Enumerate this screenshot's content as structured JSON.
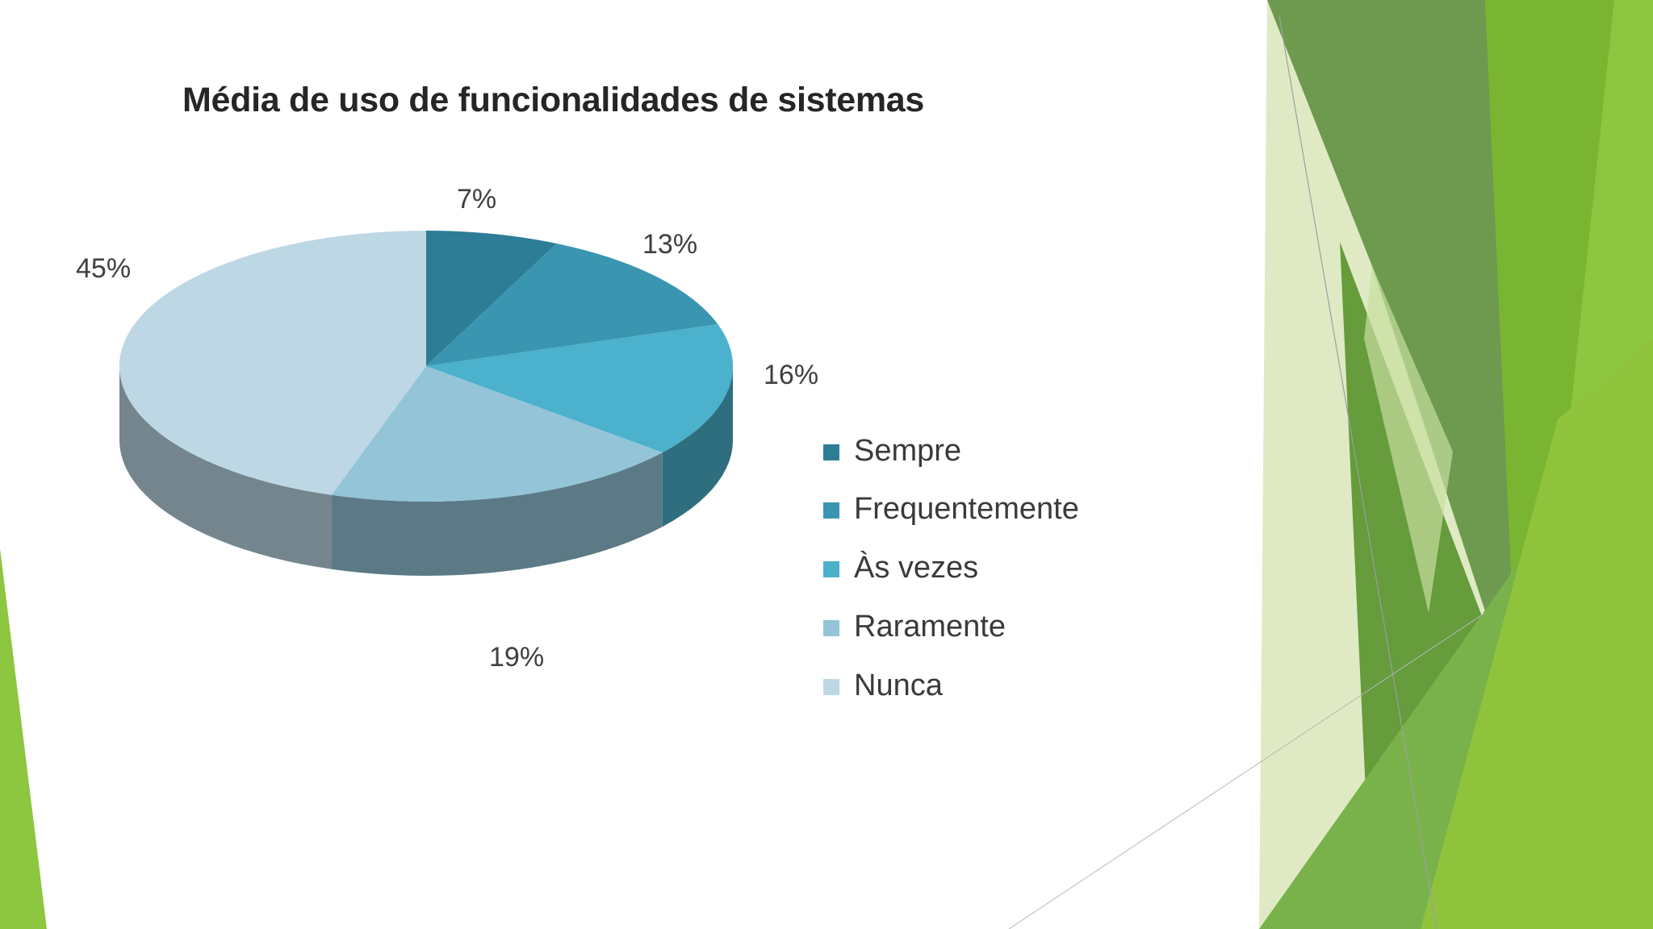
{
  "chart_data": {
    "type": "pie",
    "title": "Média de uso de funcionalidades de sistemas",
    "categories": [
      "Sempre",
      "Frequentemente",
      "Às vezes",
      "Raramente",
      "Nunca"
    ],
    "values": [
      7,
      13,
      16,
      19,
      45
    ],
    "value_labels": [
      "7%",
      "13%",
      "16%",
      "19%",
      "45%"
    ],
    "colors": [
      "#2e7d96",
      "#3a96b0",
      "#4bb1cc",
      "#93c4d8",
      "#bdd7e5"
    ],
    "legend_position": "right",
    "style": "3d"
  },
  "theme": {
    "accent_green": "#8dc63f",
    "dark_green": "#5f9a35"
  }
}
